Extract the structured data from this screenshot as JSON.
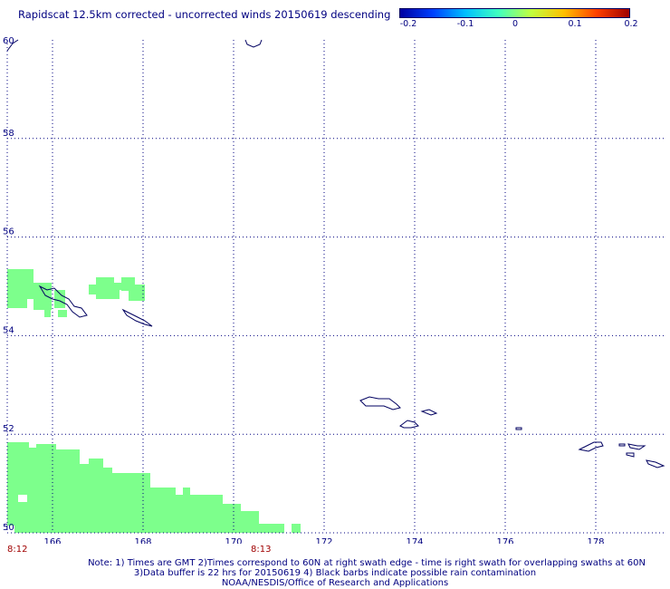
{
  "title": "Rapidscat 12.5km corrected - uncorrected winds 20150619 descending",
  "colorbar": {
    "labels": [
      "-0.2",
      "-0.1",
      "0",
      "0.1",
      "0.2"
    ],
    "colors": [
      "#0000a0",
      "#0040ff",
      "#00c0ff",
      "#40ffc0",
      "#c0ff40",
      "#ffc000",
      "#ff4000",
      "#a00000"
    ]
  },
  "map": {
    "lat_labels": [
      "60",
      "58",
      "56",
      "54",
      "52",
      "50"
    ],
    "lon_labels": [
      "166",
      "168",
      "170",
      "172",
      "174",
      "176",
      "178"
    ],
    "lat_range": [
      50,
      60
    ],
    "lon_range": [
      165,
      179.5
    ],
    "grid": "dotted",
    "coast_color": "#000060",
    "swath_color": "#7dff8c"
  },
  "passes": [
    "8:12",
    "8:13"
  ],
  "notes": {
    "line1": "Note: 1) Times are GMT 2)Times correspond to 60N at right swath edge - time is right swath for overlapping swaths at 60N",
    "line2": "3)Data buffer is 22 hrs for 20150619 4) Black barbs indicate possible rain contamination",
    "line3": "NOAA/NESDIS/Office of Research and Applications"
  }
}
